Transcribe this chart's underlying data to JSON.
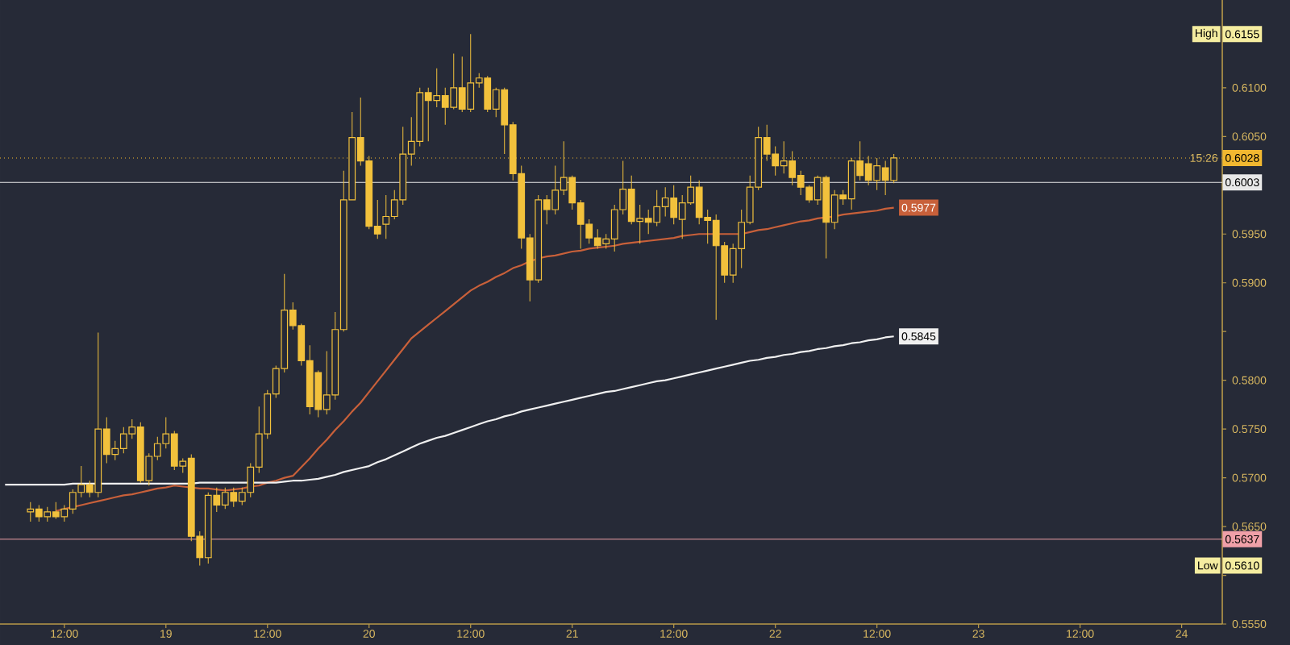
{
  "chart_data": {
    "type": "candlestick",
    "color": "#f2c13c",
    "categories": [
      null,
      null,
      null,
      null,
      null,
      null,
      null,
      "12:00",
      null,
      null,
      null,
      null,
      null,
      null,
      null,
      null,
      null,
      null,
      null,
      "19",
      null,
      null,
      null,
      null,
      null,
      null,
      null,
      null,
      null,
      null,
      null,
      "12:00",
      null,
      null,
      null,
      null,
      null,
      null,
      null,
      null,
      null,
      null,
      null,
      "20",
      null,
      null,
      null,
      null,
      null,
      null,
      null,
      null,
      null,
      null,
      null,
      "12:00",
      null,
      null,
      null,
      null,
      null,
      null,
      null,
      null,
      null,
      null,
      null,
      "21",
      null,
      null,
      null,
      null,
      null,
      null,
      null,
      null,
      null,
      null,
      null,
      "12:00",
      null,
      null,
      null,
      null,
      null,
      null,
      null,
      null,
      null,
      null,
      null,
      "22",
      null,
      null,
      null,
      null,
      null,
      null,
      null,
      null,
      null,
      null,
      null,
      "12:00",
      null,
      null,
      null,
      null,
      null,
      null,
      null,
      null,
      null,
      null,
      null,
      "23",
      null,
      null,
      null,
      null,
      null,
      null,
      null,
      null,
      null,
      null,
      null,
      "12:00",
      null,
      null,
      null,
      null,
      null,
      null,
      null,
      null,
      null,
      null,
      null,
      "24",
      null,
      null,
      null,
      null
    ],
    "ohlc": [
      null,
      null,
      null,
      [
        0.5665,
        0.5675,
        0.5655,
        0.5668
      ],
      [
        0.5668,
        0.5672,
        0.5655,
        0.566
      ],
      [
        0.566,
        0.567,
        0.5655,
        0.5665
      ],
      [
        0.5665,
        0.5675,
        0.5658,
        0.566
      ],
      [
        0.566,
        0.5672,
        0.5655,
        0.5668
      ],
      [
        0.5668,
        0.5688,
        0.5663,
        0.5685
      ],
      [
        0.5685,
        0.5712,
        0.568,
        0.5693
      ],
      [
        0.5693,
        0.5697,
        0.568,
        0.5685
      ],
      [
        0.5685,
        0.5849,
        0.568,
        0.575
      ],
      [
        0.575,
        0.5762,
        0.5715,
        0.5724
      ],
      [
        0.5724,
        0.5738,
        0.5718,
        0.573
      ],
      [
        0.573,
        0.5752,
        0.5725,
        0.5745
      ],
      [
        0.5745,
        0.576,
        0.574,
        0.5752
      ],
      [
        0.5752,
        0.5757,
        0.5695,
        0.5697
      ],
      [
        0.5697,
        0.5725,
        0.5692,
        0.5722
      ],
      [
        0.5722,
        0.5742,
        0.5718,
        0.5735
      ],
      [
        0.5735,
        0.5762,
        0.573,
        0.5745
      ],
      [
        0.5745,
        0.5748,
        0.5708,
        0.5712
      ],
      [
        0.5712,
        0.572,
        0.5705,
        0.5717
      ],
      [
        0.572,
        0.5724,
        0.5635,
        0.564
      ],
      [
        0.564,
        0.5645,
        0.561,
        0.5618
      ],
      [
        0.5618,
        0.5685,
        0.5612,
        0.5682
      ],
      [
        0.5682,
        0.569,
        0.5665,
        0.5672
      ],
      [
        0.5672,
        0.569,
        0.5668,
        0.5685
      ],
      [
        0.5685,
        0.569,
        0.567,
        0.5676
      ],
      [
        0.5676,
        0.569,
        0.5672,
        0.5685
      ],
      [
        0.5685,
        0.5715,
        0.568,
        0.5711
      ],
      [
        0.5711,
        0.5773,
        0.5705,
        0.5745
      ],
      [
        0.5745,
        0.579,
        0.574,
        0.5786
      ],
      [
        0.5786,
        0.5815,
        0.5782,
        0.5812
      ],
      [
        0.5812,
        0.5909,
        0.5808,
        0.5872
      ],
      [
        0.5872,
        0.588,
        0.5852,
        0.5856
      ],
      [
        0.5856,
        0.5858,
        0.5815,
        0.582
      ],
      [
        0.582,
        0.5836,
        0.5765,
        0.5773
      ],
      [
        0.5808,
        0.581,
        0.5762,
        0.577
      ],
      [
        0.577,
        0.583,
        0.5765,
        0.5785
      ],
      [
        0.5785,
        0.587,
        0.578,
        0.5852
      ],
      [
        0.5852,
        0.6015,
        0.585,
        0.5985
      ],
      [
        0.5985,
        0.6075,
        0.5985,
        0.6049
      ],
      [
        0.6049,
        0.609,
        0.602,
        0.6025
      ],
      [
        0.6025,
        0.603,
        0.5955,
        0.5958
      ],
      [
        0.5958,
        0.5985,
        0.5945,
        0.595
      ],
      [
        0.596,
        0.599,
        0.5945,
        0.5968
      ],
      [
        0.5968,
        0.5995,
        0.5965,
        0.5985
      ],
      [
        0.5985,
        0.606,
        0.598,
        0.6032
      ],
      [
        0.6032,
        0.607,
        0.602,
        0.6045
      ],
      [
        0.6045,
        0.61,
        0.604,
        0.6095
      ],
      [
        0.6095,
        0.61,
        0.6045,
        0.6087
      ],
      [
        0.6087,
        0.612,
        0.608,
        0.6092
      ],
      [
        0.6092,
        0.61,
        0.6062,
        0.608
      ],
      [
        0.608,
        0.6135,
        0.6078,
        0.61
      ],
      [
        0.61,
        0.6132,
        0.6075,
        0.6078
      ],
      [
        0.6078,
        0.6155,
        0.6075,
        0.6105
      ],
      [
        0.6105,
        0.6115,
        0.61,
        0.611
      ],
      [
        0.611,
        0.6112,
        0.6075,
        0.6078
      ],
      [
        0.6078,
        0.61,
        0.607,
        0.6098
      ],
      [
        0.6098,
        0.61,
        0.6032,
        0.6062
      ],
      [
        0.6062,
        0.6065,
        0.6005,
        0.6012
      ],
      [
        0.6012,
        0.602,
        0.5935,
        0.5946
      ],
      [
        0.5946,
        0.595,
        0.5881,
        0.5903
      ],
      [
        0.5903,
        0.599,
        0.59,
        0.5985
      ],
      [
        0.5985,
        0.599,
        0.596,
        0.5975
      ],
      [
        0.5975,
        0.602,
        0.597,
        0.5995
      ],
      [
        0.5995,
        0.6045,
        0.599,
        0.6008
      ],
      [
        0.6008,
        0.601,
        0.5975,
        0.5982
      ],
      [
        0.5982,
        0.5985,
        0.5935,
        0.596
      ],
      [
        0.596,
        0.5965,
        0.594,
        0.5946
      ],
      [
        0.5946,
        0.5955,
        0.5935,
        0.5938
      ],
      [
        0.594,
        0.595,
        0.5935,
        0.5945
      ],
      [
        0.5945,
        0.598,
        0.5932,
        0.5975
      ],
      [
        0.5975,
        0.6025,
        0.597,
        0.5996
      ],
      [
        0.5996,
        0.601,
        0.596,
        0.5963
      ],
      [
        0.5963,
        0.598,
        0.594,
        0.5966
      ],
      [
        0.5966,
        0.5975,
        0.595,
        0.5962
      ],
      [
        0.5962,
        0.5995,
        0.5958,
        0.5978
      ],
      [
        0.5978,
        0.5998,
        0.5968,
        0.5987
      ],
      [
        0.5987,
        0.6,
        0.596,
        0.5967
      ],
      [
        0.5965,
        0.599,
        0.5945,
        0.5982
      ],
      [
        0.5982,
        0.601,
        0.598,
        0.5998
      ],
      [
        0.5998,
        0.6005,
        0.596,
        0.5967
      ],
      [
        0.5967,
        0.5975,
        0.594,
        0.5964
      ],
      [
        0.5964,
        0.597,
        0.5862,
        0.5938
      ],
      [
        0.5938,
        0.5942,
        0.59,
        0.5908
      ],
      [
        0.5908,
        0.594,
        0.59,
        0.5935
      ],
      [
        0.5935,
        0.5975,
        0.5915,
        0.5962
      ],
      [
        0.5962,
        0.601,
        0.596,
        0.5998
      ],
      [
        0.5998,
        0.606,
        0.5995,
        0.6049
      ],
      [
        0.6049,
        0.6062,
        0.6025,
        0.6032
      ],
      [
        0.6032,
        0.604,
        0.601,
        0.602
      ],
      [
        0.602,
        0.6045,
        0.6012,
        0.6025
      ],
      [
        0.6025,
        0.6035,
        0.6,
        0.6008
      ],
      [
        0.601,
        0.6015,
        0.599,
        0.5998
      ],
      [
        0.5998,
        0.6,
        0.5982,
        0.5985
      ],
      [
        0.5985,
        0.601,
        0.598,
        0.6008
      ],
      [
        0.6008,
        0.601,
        0.5925,
        0.5962
      ],
      [
        0.5962,
        0.5995,
        0.5955,
        0.599
      ],
      [
        0.599,
        0.5995,
        0.598,
        0.5986
      ],
      [
        0.5986,
        0.6028,
        0.5975,
        0.6025
      ],
      [
        0.6025,
        0.6045,
        0.6005,
        0.601
      ],
      [
        0.6022,
        0.603,
        0.6,
        0.6005
      ],
      [
        0.6005,
        0.6028,
        0.5995,
        0.602
      ],
      [
        0.6018,
        0.6025,
        0.599,
        0.6005
      ],
      [
        0.6005,
        0.6032,
        0.6002,
        0.6028
      ],
      null,
      null,
      null,
      null,
      null,
      null,
      null,
      null,
      null,
      null,
      null,
      null,
      null,
      null,
      null,
      null,
      null,
      null,
      null,
      null,
      null,
      null,
      null,
      null,
      null,
      null,
      null,
      null,
      null,
      null,
      null,
      null,
      null,
      null,
      null,
      null,
      null,
      null
    ],
    "series": [
      {
        "type": "line",
        "color": "#c8603a",
        "values": [
          null,
          null,
          null,
          null,
          null,
          null,
          0.5666,
          0.5668,
          0.567,
          0.5672,
          0.5674,
          0.5676,
          0.5678,
          0.568,
          0.5682,
          0.5683,
          0.5685,
          0.5687,
          0.5689,
          0.569,
          0.5692,
          0.5691,
          0.569,
          0.5689,
          0.5689,
          0.5688,
          0.5687,
          0.5688,
          0.5689,
          0.5691,
          0.5692,
          0.5695,
          0.5697,
          0.57,
          0.5702,
          0.5711,
          0.572,
          0.573,
          0.5739,
          0.5749,
          0.5758,
          0.5768,
          0.5777,
          0.5788,
          0.5799,
          0.581,
          0.5821,
          0.5832,
          0.5843,
          0.585,
          0.5857,
          0.5864,
          0.5871,
          0.5878,
          0.5885,
          0.5892,
          0.5897,
          0.5901,
          0.5906,
          0.591,
          0.5915,
          0.5918,
          0.5922,
          0.5925,
          0.5927,
          0.5928,
          0.593,
          0.5932,
          0.5933,
          0.5935,
          0.5936,
          0.5937,
          0.5938,
          0.594,
          0.5941,
          0.5942,
          0.5943,
          0.5944,
          0.5945,
          0.5946,
          0.5948,
          0.5949,
          0.595,
          0.595,
          0.595,
          0.595,
          0.595,
          0.595,
          0.5952,
          0.5954,
          0.5955,
          0.5957,
          0.5959,
          0.5961,
          0.5963,
          0.5964,
          0.5966,
          0.5967,
          0.5968,
          0.597,
          0.5971,
          0.5972,
          0.5973,
          0.5974,
          0.5976,
          0.5977,
          null,
          null,
          null,
          null,
          null,
          null,
          null,
          null,
          null,
          null,
          null,
          null,
          null,
          null,
          null,
          null,
          null,
          null,
          null,
          null,
          null,
          null,
          null,
          null,
          null,
          null,
          null,
          null,
          null,
          null,
          null,
          null,
          null,
          null,
          null,
          null,
          null,
          null
        ],
        "value_labels": [
          null,
          null,
          null,
          null,
          null,
          null,
          null,
          null,
          null,
          null,
          null,
          null,
          null,
          null,
          null,
          null,
          null,
          null,
          null,
          null,
          null,
          null,
          null,
          null,
          null,
          null,
          null,
          null,
          null,
          null,
          null,
          null,
          null,
          null,
          null,
          null,
          null,
          null,
          null,
          null,
          null,
          null,
          null,
          null,
          null,
          null,
          null,
          null,
          null,
          null,
          null,
          null,
          null,
          null,
          null,
          null,
          null,
          null,
          null,
          null,
          null,
          null,
          null,
          null,
          null,
          null,
          null,
          null,
          null,
          null,
          null,
          null,
          null,
          null,
          null,
          null,
          null,
          null,
          null,
          null,
          null,
          null,
          null,
          null,
          null,
          null,
          null,
          null,
          null,
          null,
          null,
          null,
          null,
          null,
          null,
          null,
          null,
          null,
          null,
          null,
          null,
          null,
          null,
          null,
          null,
          "0.5977",
          null,
          null,
          null,
          null,
          null,
          null,
          null,
          null,
          null,
          null,
          null,
          null,
          null,
          null,
          null,
          null,
          null,
          null,
          null,
          null,
          null,
          null,
          null,
          null,
          null,
          null,
          null,
          null,
          null,
          null,
          null,
          null,
          null,
          null,
          null,
          null,
          null,
          null
        ]
      },
      {
        "type": "line",
        "color": "#f0f0f0",
        "values": [
          0.5693,
          0.5693,
          0.5693,
          0.5693,
          0.5693,
          0.5693,
          0.5693,
          0.5693,
          0.5694,
          0.5694,
          0.5694,
          0.5694,
          0.5694,
          0.5694,
          0.5694,
          0.5694,
          0.5694,
          0.5694,
          0.5694,
          0.5694,
          0.5694,
          0.5694,
          0.5694,
          0.5695,
          0.5695,
          0.5695,
          0.5695,
          0.5695,
          0.5695,
          0.5695,
          0.5695,
          0.5695,
          0.5695,
          0.5696,
          0.5697,
          0.5697,
          0.5698,
          0.5699,
          0.5701,
          0.5703,
          0.5706,
          0.5708,
          0.571,
          0.5712,
          0.5716,
          0.5719,
          0.5723,
          0.5727,
          0.5731,
          0.5735,
          0.5738,
          0.5741,
          0.5743,
          0.5746,
          0.5749,
          0.5752,
          0.5755,
          0.5758,
          0.576,
          0.5763,
          0.5765,
          0.5768,
          0.577,
          0.5772,
          0.5774,
          0.5776,
          0.5778,
          0.578,
          0.5782,
          0.5784,
          0.5786,
          0.5788,
          0.5789,
          0.5791,
          0.5793,
          0.5795,
          0.5797,
          0.5799,
          0.58,
          0.5802,
          0.5804,
          0.5806,
          0.5808,
          0.581,
          0.5812,
          0.5814,
          0.5816,
          0.5818,
          0.582,
          0.5821,
          0.5823,
          0.5824,
          0.5826,
          0.5827,
          0.5829,
          0.583,
          0.5832,
          0.5833,
          0.5835,
          0.5836,
          0.5838,
          0.5839,
          0.5841,
          0.5842,
          0.5844,
          0.5845,
          null,
          null,
          null,
          null,
          null,
          null,
          null,
          null,
          null,
          null,
          null,
          null,
          null,
          null,
          null,
          null,
          null,
          null,
          null,
          null,
          null,
          null,
          null,
          null,
          null,
          null,
          null,
          null,
          null,
          null,
          null,
          null,
          null,
          null,
          null,
          null,
          null,
          null
        ],
        "value_labels": [
          null,
          null,
          null,
          null,
          null,
          null,
          null,
          null,
          null,
          null,
          null,
          null,
          null,
          null,
          null,
          null,
          null,
          null,
          null,
          null,
          null,
          null,
          null,
          null,
          null,
          null,
          null,
          null,
          null,
          null,
          null,
          null,
          null,
          null,
          null,
          null,
          null,
          null,
          null,
          null,
          null,
          null,
          null,
          null,
          null,
          null,
          null,
          null,
          null,
          null,
          null,
          null,
          null,
          null,
          null,
          null,
          null,
          null,
          null,
          null,
          null,
          null,
          null,
          null,
          null,
          null,
          null,
          null,
          null,
          null,
          null,
          null,
          null,
          null,
          null,
          null,
          null,
          null,
          null,
          null,
          null,
          null,
          null,
          null,
          null,
          null,
          null,
          null,
          null,
          null,
          null,
          null,
          null,
          null,
          null,
          null,
          null,
          null,
          null,
          null,
          null,
          null,
          null,
          null,
          null,
          "0.5845",
          null,
          null,
          null,
          null,
          null,
          null,
          null,
          null,
          null,
          null,
          null,
          null,
          null,
          null,
          null,
          null,
          null,
          null,
          null,
          null,
          null,
          null,
          null,
          null,
          null,
          null,
          null,
          null,
          null,
          null,
          null,
          null,
          null,
          null,
          null,
          null,
          null,
          null
        ]
      }
    ],
    "ylim": [
      0.555,
      0.619
    ],
    "yticks": [
      {
        "value": 0.555,
        "label": "0.5550"
      },
      {
        "value": 0.56,
        "label": null
      },
      {
        "value": 0.565,
        "label": "0.5650"
      },
      {
        "value": 0.57,
        "label": "0.5700"
      },
      {
        "value": 0.575,
        "label": "0.5750"
      },
      {
        "value": 0.58,
        "label": "0.5800"
      },
      {
        "value": 0.585,
        "label": null
      },
      {
        "value": 0.59,
        "label": "0.5900"
      },
      {
        "value": 0.595,
        "label": "0.5950"
      },
      {
        "value": 0.6,
        "label": null
      },
      {
        "value": 0.605,
        "label": "0.6050"
      },
      {
        "value": 0.61,
        "label": "0.6100"
      }
    ],
    "ref_lines": [
      {
        "axis": "y",
        "value": 0.6028,
        "label": "0.6028",
        "color": "#f2b830",
        "line_style": "dotted"
      },
      {
        "axis": "y",
        "value": 0.6003,
        "label": "0.6003",
        "color": "#e8e8e8",
        "line_style": "solid"
      },
      {
        "axis": "y",
        "value": 0.5637,
        "label": "0.5637",
        "color": "#f0a0a8",
        "line_style": "solid"
      }
    ],
    "annotations": [
      {
        "text": "High",
        "y": 0.6155
      },
      {
        "text": "0.6155",
        "y": 0.6155
      },
      {
        "text": "Low",
        "y": 0.561
      },
      {
        "text": "0.5610",
        "y": 0.561
      },
      "15:26"
    ]
  }
}
